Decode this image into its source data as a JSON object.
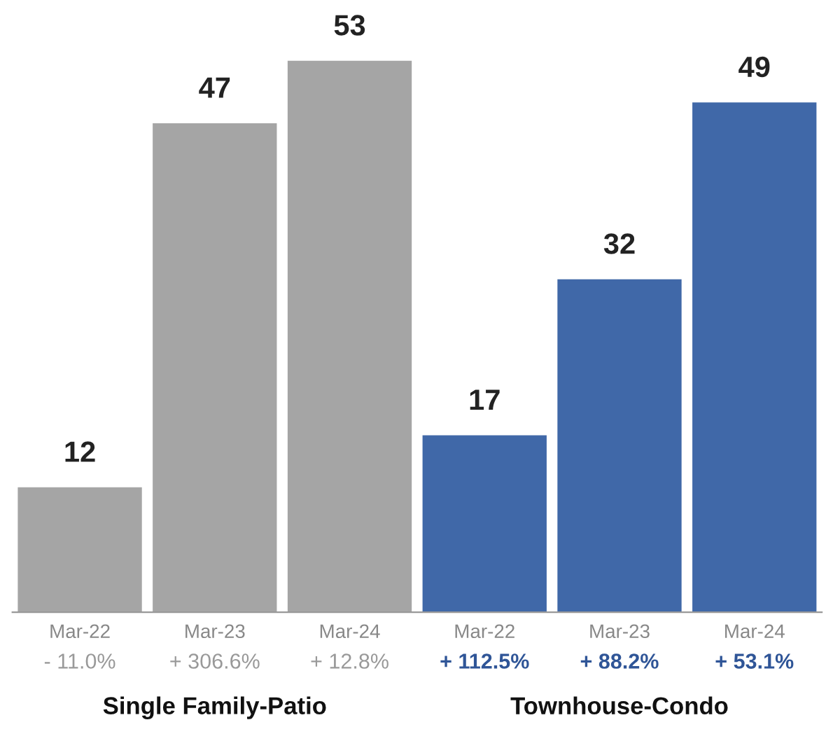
{
  "chart_data": {
    "type": "bar",
    "categories": [
      "Mar-22",
      "Mar-23",
      "Mar-24",
      "Mar-22",
      "Mar-23",
      "Mar-24"
    ],
    "values": [
      12,
      47,
      53,
      17,
      32,
      49
    ],
    "colors": [
      "#a5a5a5",
      "#a5a5a5",
      "#a5a5a5",
      "#4068a8",
      "#4068a8",
      "#4068a8"
    ],
    "data_labels": true,
    "grid": false,
    "annotations": [
      "- 11.0%",
      "+ 306.6%",
      "+ 12.8%",
      "+ 112.5%",
      "+ 88.2%",
      "+ 53.1%",
      "Single Family-Patio",
      "Townhouse-Condo"
    ]
  }
}
